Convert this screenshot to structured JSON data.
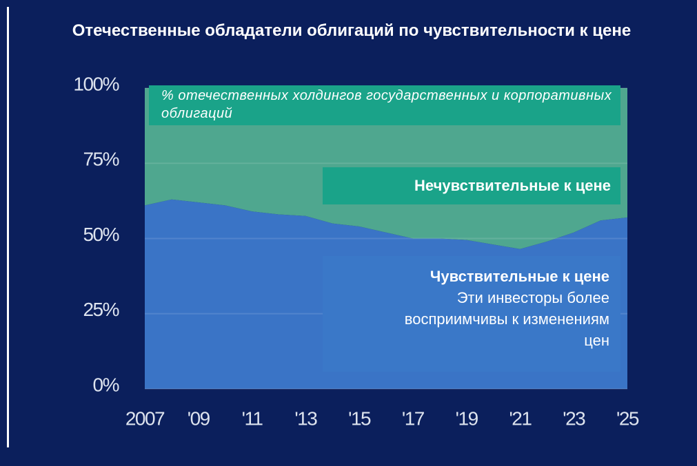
{
  "chart_data": {
    "type": "stacked_area",
    "title": "Отечественные обладатели облигаций по чувствительности к цене",
    "subtitle": "% отечественных холдингов государственных и корпоративных облигаций",
    "annotation": "Эти инвесторы более восприимчивы к изменениям цен",
    "x": [
      2007,
      2008,
      2009,
      2010,
      2011,
      2012,
      2013,
      2014,
      2015,
      2016,
      2017,
      2018,
      2019,
      2020,
      2021,
      2022,
      2023,
      2024,
      2025
    ],
    "series": [
      {
        "name": "Чувствительные к цене",
        "color": "#3a74c6",
        "values": [
          61,
          63,
          62,
          61,
          59,
          58,
          57.5,
          55,
          54,
          52,
          50,
          50,
          49.5,
          48,
          46.5,
          49,
          52,
          56,
          57
        ]
      },
      {
        "name": "Нечувствительные к цене",
        "color": "#4fa78f",
        "values": [
          39,
          37,
          38,
          39,
          41,
          42,
          42.5,
          45,
          46,
          48,
          50,
          50,
          50.5,
          52,
          53.5,
          51,
          48,
          44,
          43
        ]
      }
    ],
    "xlim": [
      2007,
      2025
    ],
    "xticks": [
      {
        "value": 2007,
        "label": "2007"
      },
      {
        "value": 2009,
        "label": "'09"
      },
      {
        "value": 2011,
        "label": "'11"
      },
      {
        "value": 2013,
        "label": "'13"
      },
      {
        "value": 2015,
        "label": "'15"
      },
      {
        "value": 2017,
        "label": "'17"
      },
      {
        "value": 2019,
        "label": "'19"
      },
      {
        "value": 2021,
        "label": "'21"
      },
      {
        "value": 2023,
        "label": "'23"
      },
      {
        "value": 2025,
        "label": "'25"
      }
    ],
    "ylim": [
      0,
      100
    ],
    "yticks": [
      {
        "value": 0,
        "label": "0%"
      },
      {
        "value": 25,
        "label": "25%"
      },
      {
        "value": 50,
        "label": "50%"
      },
      {
        "value": 75,
        "label": "75%"
      },
      {
        "value": 100,
        "label": "100%"
      }
    ],
    "grid": true
  }
}
